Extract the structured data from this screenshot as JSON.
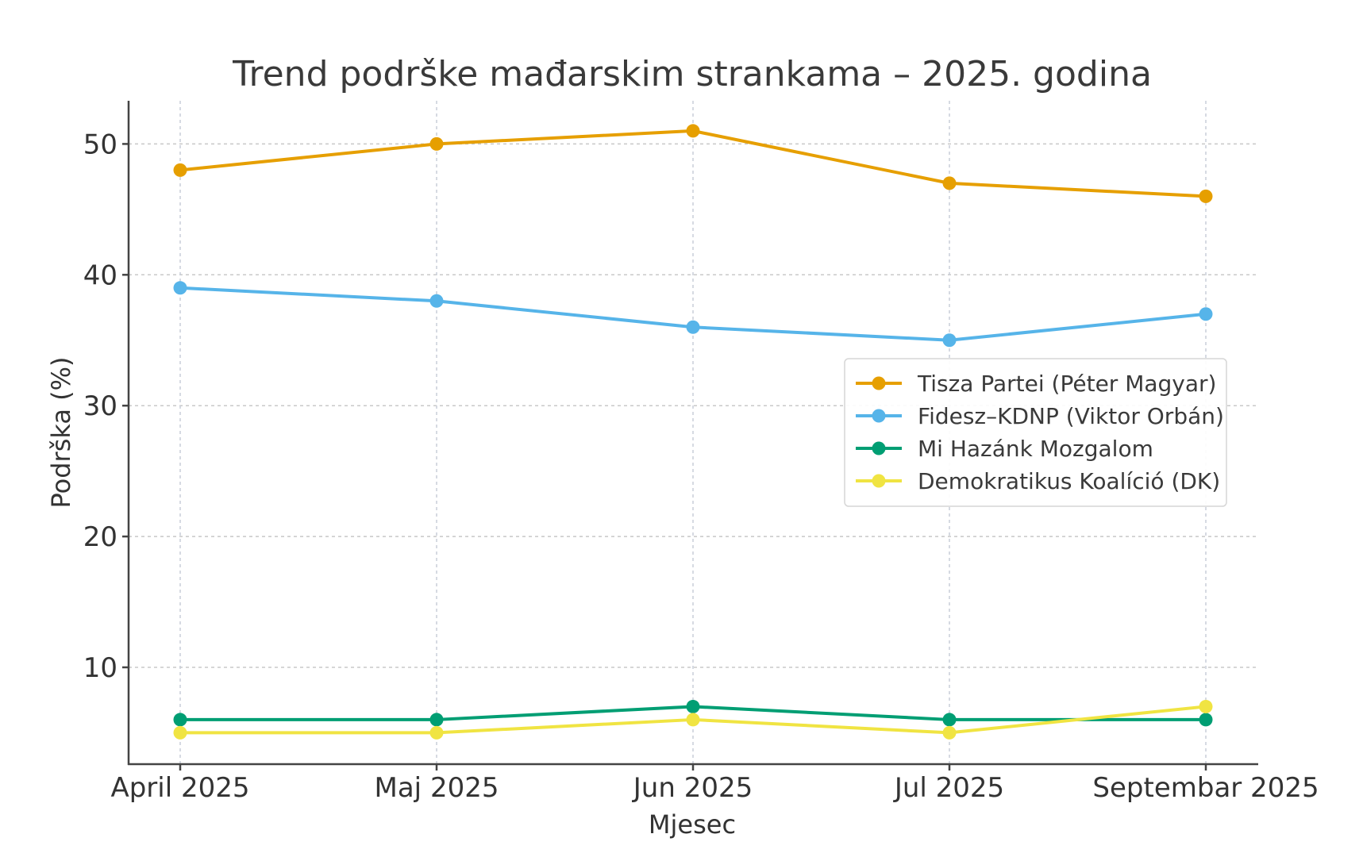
{
  "chart_data": {
    "type": "line",
    "title": "Trend podrške mađarskim strankama – 2025. godina",
    "xlabel": "Mjesec",
    "ylabel": "Podrška (%)",
    "categories": [
      "April 2025",
      "Maj 2025",
      "Jun 2025",
      "Jul 2025",
      "Septembar 2025"
    ],
    "yticks": [
      10,
      20,
      30,
      40,
      50
    ],
    "ylim": [
      2.6,
      53.3
    ],
    "grid": true,
    "legend_position": "center-right",
    "series": [
      {
        "name": "Tisza Partei (Péter Magyar)",
        "color": "#E69F00",
        "values": [
          48,
          50,
          51,
          47,
          46
        ]
      },
      {
        "name": "Fidesz–KDNP (Viktor Orbán)",
        "color": "#56B4E9",
        "values": [
          39,
          38,
          36,
          35,
          37
        ]
      },
      {
        "name": "Mi Hazánk Mozgalom",
        "color": "#009E73",
        "values": [
          6,
          6,
          7,
          6,
          6
        ]
      },
      {
        "name": "Demokratikus Koalíció (DK)",
        "color": "#F0E442",
        "values": [
          5,
          5,
          6,
          5,
          7
        ]
      }
    ]
  }
}
